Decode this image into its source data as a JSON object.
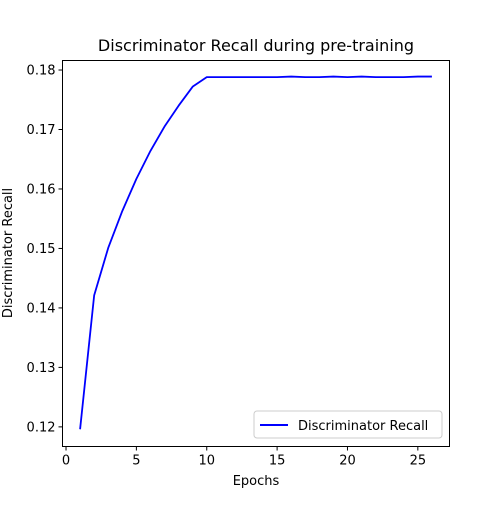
{
  "chart_data": {
    "type": "line",
    "title": "Discriminator Recall during pre-training",
    "xlabel": "Epochs",
    "ylabel": "Discriminator Recall",
    "xlim": [
      -0.25,
      27.25
    ],
    "ylim": [
      0.1167,
      0.1816
    ],
    "xticks": [
      0,
      5,
      10,
      15,
      20,
      25
    ],
    "yticks": [
      0.12,
      0.13,
      0.14,
      0.15,
      0.16,
      0.17,
      0.18
    ],
    "grid": false,
    "legend_position": "lower-right",
    "series": [
      {
        "name": "Discriminator Recall",
        "color": "#0000ff",
        "x": [
          1,
          2,
          3,
          4,
          5,
          6,
          7,
          8,
          9,
          10,
          11,
          12,
          13,
          14,
          15,
          16,
          17,
          18,
          19,
          20,
          21,
          22,
          23,
          24,
          25,
          26
        ],
        "y": [
          0.1196,
          0.1421,
          0.1501,
          0.1563,
          0.1617,
          0.1664,
          0.1705,
          0.174,
          0.1772,
          0.1788,
          0.1788,
          0.1788,
          0.1788,
          0.1788,
          0.1788,
          0.1789,
          0.1788,
          0.1788,
          0.1789,
          0.1788,
          0.1789,
          0.1788,
          0.1788,
          0.1788,
          0.1789,
          0.1789
        ]
      }
    ]
  }
}
